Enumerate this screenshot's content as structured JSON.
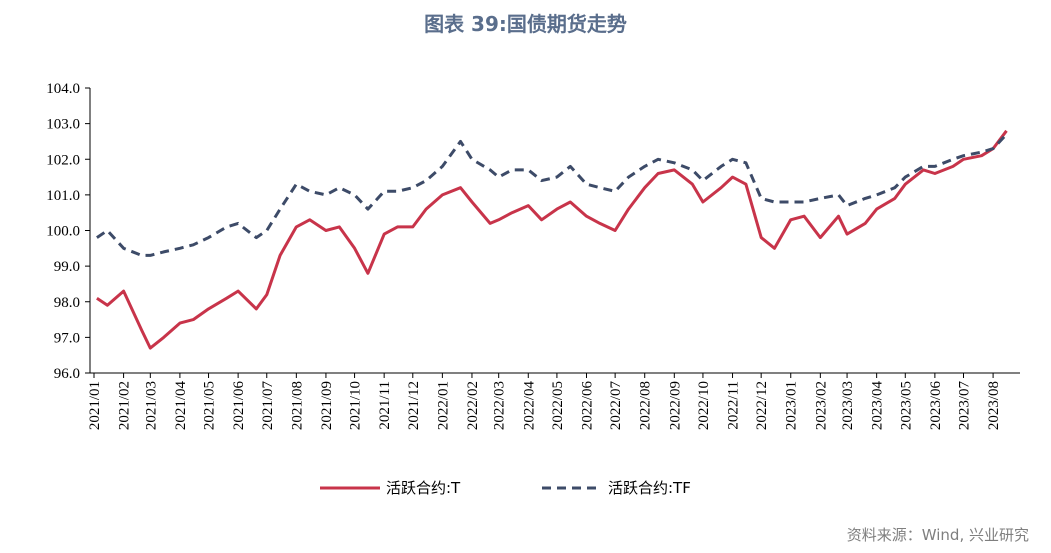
{
  "title": "图表 39:国债期货走势",
  "source": "资料来源：Wind, 兴业研究",
  "chart_data": {
    "type": "line",
    "ylim": [
      96.0,
      104.0
    ],
    "y_ticks": [
      "104.0",
      "103.0",
      "102.0",
      "101.0",
      "100.0",
      "99.0",
      "98.0",
      "97.0",
      "96.0"
    ],
    "x_ticks": [
      "2021/01",
      "2021/02",
      "2021/03",
      "2021/04",
      "2021/05",
      "2021/06",
      "2021/07",
      "2021/08",
      "2021/09",
      "2021/10",
      "2021/11",
      "2021/12",
      "2022/01",
      "2022/02",
      "2022/03",
      "2022/04",
      "2022/05",
      "2022/06",
      "2022/07",
      "2022/08",
      "2022/09",
      "2022/10",
      "2022/11",
      "2022/12",
      "2023/01",
      "2023/02",
      "2023/03",
      "2023/04",
      "2023/05",
      "2023/06",
      "2023/07",
      "2023/08"
    ],
    "grid": false,
    "legend_position": "bottom",
    "series": [
      {
        "name": "活跃合约:T",
        "color": "#c8344a",
        "style": "solid",
        "x": [
          "2021/01/04",
          "2021/01/15",
          "2021/02/01",
          "2021/02/20",
          "2021/03/01",
          "2021/03/15",
          "2021/04/01",
          "2021/04/15",
          "2021/05/01",
          "2021/05/20",
          "2021/06/01",
          "2021/06/20",
          "2021/07/01",
          "2021/07/15",
          "2021/08/01",
          "2021/08/15",
          "2021/09/01",
          "2021/09/15",
          "2021/10/01",
          "2021/10/15",
          "2021/11/01",
          "2021/11/15",
          "2021/12/01",
          "2021/12/15",
          "2022/01/01",
          "2022/01/20",
          "2022/02/01",
          "2022/02/20",
          "2022/03/01",
          "2022/03/15",
          "2022/04/01",
          "2022/04/15",
          "2022/05/01",
          "2022/05/15",
          "2022/06/01",
          "2022/06/15",
          "2022/07/01",
          "2022/07/15",
          "2022/08/01",
          "2022/08/15",
          "2022/09/01",
          "2022/09/20",
          "2022/10/01",
          "2022/10/20",
          "2022/11/01",
          "2022/11/15",
          "2022/12/01",
          "2022/12/15",
          "2023/01/01",
          "2023/01/15",
          "2023/02/01",
          "2023/02/20",
          "2023/03/01",
          "2023/03/20",
          "2023/04/01",
          "2023/04/20",
          "2023/05/01",
          "2023/05/20",
          "2023/06/01",
          "2023/06/20",
          "2023/07/01",
          "2023/07/20",
          "2023/08/01",
          "2023/08/15"
        ],
        "values": [
          98.1,
          97.9,
          98.3,
          97.2,
          96.7,
          97.0,
          97.4,
          97.5,
          97.8,
          98.1,
          98.3,
          97.8,
          98.2,
          99.3,
          100.1,
          100.3,
          100.0,
          100.1,
          99.5,
          98.8,
          99.9,
          100.1,
          100.1,
          100.6,
          101.0,
          101.2,
          100.8,
          100.2,
          100.3,
          100.5,
          100.7,
          100.3,
          100.6,
          100.8,
          100.4,
          100.2,
          100.0,
          100.6,
          101.2,
          101.6,
          101.7,
          101.3,
          100.8,
          101.2,
          101.5,
          101.3,
          99.8,
          99.5,
          100.3,
          100.4,
          99.8,
          100.4,
          99.9,
          100.2,
          100.6,
          100.9,
          101.3,
          101.7,
          101.6,
          101.8,
          102.0,
          102.1,
          102.3,
          102.8
        ]
      },
      {
        "name": "活跃合约:TF",
        "color": "#3d4b68",
        "style": "dashed",
        "x": [
          "2021/01/04",
          "2021/01/15",
          "2021/02/01",
          "2021/02/20",
          "2021/03/01",
          "2021/03/15",
          "2021/04/01",
          "2021/04/15",
          "2021/05/01",
          "2021/05/20",
          "2021/06/01",
          "2021/06/20",
          "2021/07/01",
          "2021/07/15",
          "2021/08/01",
          "2021/08/15",
          "2021/09/01",
          "2021/09/15",
          "2021/10/01",
          "2021/10/15",
          "2021/11/01",
          "2021/11/15",
          "2021/12/01",
          "2021/12/15",
          "2022/01/01",
          "2022/01/20",
          "2022/02/01",
          "2022/02/20",
          "2022/03/01",
          "2022/03/15",
          "2022/04/01",
          "2022/04/15",
          "2022/05/01",
          "2022/05/15",
          "2022/06/01",
          "2022/06/15",
          "2022/07/01",
          "2022/07/15",
          "2022/08/01",
          "2022/08/15",
          "2022/09/01",
          "2022/09/20",
          "2022/10/01",
          "2022/10/20",
          "2022/11/01",
          "2022/11/15",
          "2022/12/01",
          "2022/12/15",
          "2023/01/01",
          "2023/01/15",
          "2023/02/01",
          "2023/02/20",
          "2023/03/01",
          "2023/03/20",
          "2023/04/01",
          "2023/04/20",
          "2023/05/01",
          "2023/05/20",
          "2023/06/01",
          "2023/06/20",
          "2023/07/01",
          "2023/07/20",
          "2023/08/01",
          "2023/08/15"
        ],
        "values": [
          99.8,
          100.0,
          99.5,
          99.3,
          99.3,
          99.4,
          99.5,
          99.6,
          99.8,
          100.1,
          100.2,
          99.8,
          100.0,
          100.6,
          101.3,
          101.1,
          101.0,
          101.2,
          101.0,
          100.6,
          101.1,
          101.1,
          101.2,
          101.4,
          101.8,
          102.5,
          102.0,
          101.7,
          101.5,
          101.7,
          101.7,
          101.4,
          101.5,
          101.8,
          101.3,
          101.2,
          101.1,
          101.5,
          101.8,
          102.0,
          101.9,
          101.7,
          101.4,
          101.8,
          102.0,
          101.9,
          100.9,
          100.8,
          100.8,
          100.8,
          100.9,
          101.0,
          100.7,
          100.9,
          101.0,
          101.2,
          101.5,
          101.8,
          101.8,
          102.0,
          102.1,
          102.2,
          102.3,
          102.7
        ]
      }
    ]
  }
}
